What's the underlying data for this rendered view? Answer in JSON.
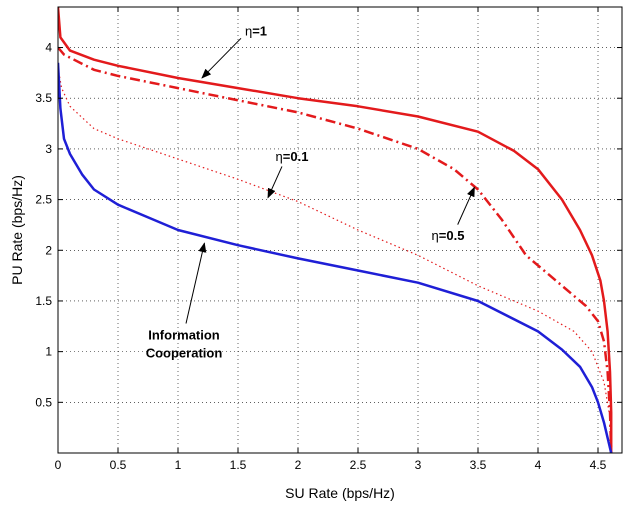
{
  "chart_data": {
    "type": "line",
    "title": "",
    "xlabel": "SU Rate (bps/Hz)",
    "ylabel": "PU Rate (bps/Hz)",
    "xlim": [
      0,
      4.7
    ],
    "ylim": [
      0,
      4.4
    ],
    "xticks": [
      "0",
      "0.5",
      "1",
      "1.5",
      "2",
      "2.5",
      "3",
      "3.5",
      "4",
      "4.5"
    ],
    "yticks": [
      "0.5",
      "1",
      "1.5",
      "2",
      "2.5",
      "3",
      "3.5",
      "4"
    ],
    "grid": true,
    "series": [
      {
        "id": "eta1",
        "color": "#e31a1c",
        "style": "solid",
        "points": [
          [
            0.0,
            4.4
          ],
          [
            0.02,
            4.1
          ],
          [
            0.1,
            3.97
          ],
          [
            0.3,
            3.88
          ],
          [
            0.5,
            3.82
          ],
          [
            1.0,
            3.7
          ],
          [
            1.5,
            3.6
          ],
          [
            2.0,
            3.5
          ],
          [
            2.5,
            3.42
          ],
          [
            3.0,
            3.32
          ],
          [
            3.5,
            3.17
          ],
          [
            3.8,
            2.98
          ],
          [
            4.0,
            2.8
          ],
          [
            4.2,
            2.5
          ],
          [
            4.35,
            2.2
          ],
          [
            4.45,
            1.95
          ],
          [
            4.52,
            1.7
          ],
          [
            4.55,
            1.5
          ],
          [
            4.58,
            1.2
          ],
          [
            4.6,
            0.8
          ],
          [
            4.61,
            0.4
          ],
          [
            4.61,
            0.0
          ]
        ]
      },
      {
        "id": "eta05",
        "color": "#e31a1c",
        "style": "dashdot",
        "points": [
          [
            0.0,
            4.0
          ],
          [
            0.05,
            3.93
          ],
          [
            0.3,
            3.78
          ],
          [
            0.5,
            3.72
          ],
          [
            1.0,
            3.6
          ],
          [
            1.5,
            3.48
          ],
          [
            2.0,
            3.36
          ],
          [
            2.5,
            3.2
          ],
          [
            3.0,
            3.0
          ],
          [
            3.3,
            2.8
          ],
          [
            3.5,
            2.6
          ],
          [
            3.7,
            2.3
          ],
          [
            3.9,
            1.95
          ],
          [
            4.1,
            1.75
          ],
          [
            4.3,
            1.55
          ],
          [
            4.4,
            1.45
          ],
          [
            4.5,
            1.3
          ],
          [
            4.55,
            1.1
          ],
          [
            4.58,
            0.8
          ],
          [
            4.6,
            0.4
          ],
          [
            4.61,
            0.0
          ]
        ]
      },
      {
        "id": "eta01",
        "color": "#e31a1c",
        "style": "dotted",
        "points": [
          [
            0.0,
            3.8
          ],
          [
            0.03,
            3.6
          ],
          [
            0.1,
            3.42
          ],
          [
            0.3,
            3.2
          ],
          [
            0.5,
            3.1
          ],
          [
            1.0,
            2.9
          ],
          [
            1.5,
            2.7
          ],
          [
            2.0,
            2.48
          ],
          [
            2.5,
            2.2
          ],
          [
            3.0,
            1.95
          ],
          [
            3.5,
            1.65
          ],
          [
            4.0,
            1.4
          ],
          [
            4.3,
            1.2
          ],
          [
            4.45,
            1.0
          ],
          [
            4.55,
            0.7
          ],
          [
            4.6,
            0.35
          ],
          [
            4.61,
            0.0
          ]
        ]
      },
      {
        "id": "info",
        "color": "#1f1fd6",
        "style": "solid",
        "points": [
          [
            0.0,
            3.85
          ],
          [
            0.02,
            3.4
          ],
          [
            0.05,
            3.1
          ],
          [
            0.1,
            2.95
          ],
          [
            0.2,
            2.75
          ],
          [
            0.3,
            2.6
          ],
          [
            0.5,
            2.45
          ],
          [
            0.8,
            2.3
          ],
          [
            1.0,
            2.2
          ],
          [
            1.5,
            2.05
          ],
          [
            2.0,
            1.92
          ],
          [
            2.5,
            1.8
          ],
          [
            3.0,
            1.68
          ],
          [
            3.5,
            1.5
          ],
          [
            4.0,
            1.2
          ],
          [
            4.2,
            1.02
          ],
          [
            4.35,
            0.85
          ],
          [
            4.45,
            0.65
          ],
          [
            4.5,
            0.5
          ],
          [
            4.55,
            0.3
          ],
          [
            4.58,
            0.15
          ],
          [
            4.61,
            0.0
          ]
        ]
      }
    ],
    "annotations": [
      {
        "label_greek": "η",
        "label_rest": "=1",
        "tx": 1.65,
        "ty": 4.12,
        "ax": 1.2,
        "ay": 3.7
      },
      {
        "label_greek": "η",
        "label_rest": "=0.5",
        "tx": 3.25,
        "ty": 2.1,
        "ax": 3.47,
        "ay": 2.62
      },
      {
        "label_greek": "η",
        "label_rest": "=0.1",
        "tx": 1.95,
        "ty": 2.88,
        "ax": 1.75,
        "ay": 2.52
      },
      {
        "label": "Information Cooperation",
        "lines": [
          "Information",
          "Cooperation"
        ],
        "tx": 1.05,
        "ty": 1.12,
        "ax": 1.22,
        "ay": 2.07
      }
    ]
  }
}
